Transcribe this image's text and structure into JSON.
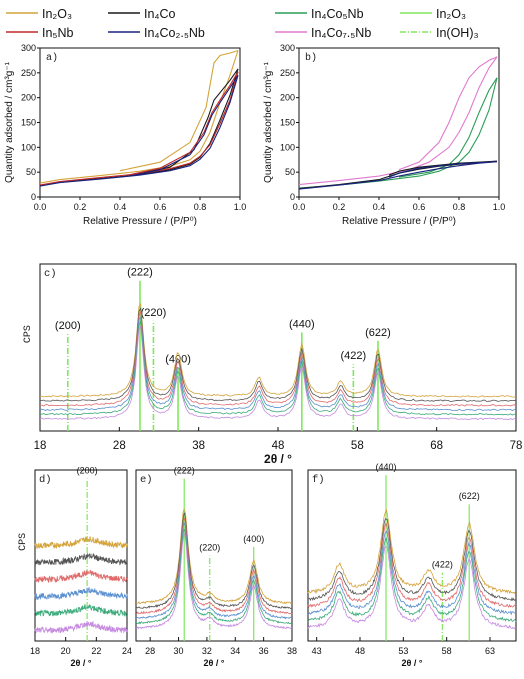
{
  "legend": [
    {
      "text": "In₂O₃",
      "color": "#d4a33a",
      "dash": ""
    },
    {
      "text": "In₄Co",
      "color": "#1a1a1a",
      "dash": ""
    },
    {
      "text": "In₄Co₅Nb",
      "color": "#2a9d55",
      "dash": ""
    },
    {
      "text": "In₂O₃",
      "color": "#7fe85a",
      "dash": ""
    },
    {
      "text": "In₅Nb",
      "color": "#c0282a",
      "dash": ""
    },
    {
      "text": "In₄Co₂.₅Nb",
      "color": "#1a237e",
      "dash": ""
    },
    {
      "text": "In₄Co₇.₅Nb",
      "color": "#e07ad0",
      "dash": ""
    },
    {
      "text": "In(OH)₃",
      "color": "#7fe85a",
      "dash": "6,2,1,2"
    }
  ],
  "colors": {
    "In2O3": "#d4a33a",
    "In4Co": "#1a1a1a",
    "In5Nb": "#c0282a",
    "In4Co2.5Nb": "#1a237e",
    "In4Co5Nb": "#2a9d55",
    "In4Co7.5Nb": "#e07ad0",
    "xrd": [
      "#d4a33a",
      "#555555",
      "#e06a6a",
      "#5a8fd0",
      "#3aaa7a",
      "#c58ae0"
    ],
    "ref": "#7fe85a"
  },
  "chart_data": [
    {
      "panel": "a)",
      "type": "line",
      "xlabel": "Relative Pressure / (P/P⁰)",
      "ylabel": "Quantity adsorbed / cm³g⁻¹",
      "xlim": [
        0.0,
        1.0
      ],
      "ylim": [
        0,
        300
      ],
      "xticks": [
        "0.0",
        "0.2",
        "0.4",
        "0.6",
        "0.8",
        "1.0"
      ],
      "yticks": [
        "0",
        "50",
        "100",
        "150",
        "200",
        "250",
        "300"
      ],
      "series": [
        {
          "key": "In2O3",
          "ads_x": [
            0.0,
            0.1,
            0.3,
            0.5,
            0.65,
            0.75,
            0.8,
            0.85,
            0.9,
            0.95,
            0.99
          ],
          "ads_y": [
            28,
            35,
            43,
            52,
            62,
            75,
            92,
            130,
            190,
            245,
            295
          ],
          "des_x": [
            0.99,
            0.95,
            0.9,
            0.87,
            0.83,
            0.75,
            0.6,
            0.4
          ],
          "des_y": [
            295,
            290,
            285,
            270,
            180,
            110,
            70,
            53
          ]
        },
        {
          "key": "In4Co",
          "ads_x": [
            0.0,
            0.1,
            0.3,
            0.5,
            0.65,
            0.75,
            0.8,
            0.85,
            0.9,
            0.95,
            0.99
          ],
          "ads_y": [
            23,
            30,
            37,
            45,
            55,
            66,
            80,
            108,
            155,
            205,
            258
          ],
          "des_x": [
            0.99,
            0.95,
            0.9,
            0.87,
            0.84,
            0.77,
            0.65,
            0.45
          ],
          "des_y": [
            258,
            235,
            210,
            195,
            160,
            95,
            60,
            43
          ]
        },
        {
          "key": "In5Nb",
          "ads_x": [
            0.0,
            0.1,
            0.3,
            0.5,
            0.65,
            0.75,
            0.8,
            0.85,
            0.9,
            0.95,
            0.99
          ],
          "ads_y": [
            24,
            31,
            39,
            47,
            57,
            68,
            82,
            105,
            148,
            195,
            252
          ],
          "des_x": [
            0.99,
            0.95,
            0.9,
            0.86,
            0.82,
            0.75,
            0.6,
            0.45
          ],
          "des_y": [
            252,
            225,
            195,
            170,
            130,
            90,
            58,
            45
          ]
        },
        {
          "key": "In4Co2.5Nb",
          "ads_x": [
            0.0,
            0.1,
            0.3,
            0.5,
            0.65,
            0.75,
            0.8,
            0.85,
            0.9,
            0.95,
            0.99
          ],
          "ads_y": [
            22,
            29,
            36,
            44,
            53,
            63,
            76,
            98,
            140,
            190,
            245
          ],
          "des_x": [
            0.99,
            0.95,
            0.9,
            0.86,
            0.82,
            0.75,
            0.6,
            0.45
          ],
          "des_y": [
            245,
            220,
            190,
            165,
            125,
            85,
            55,
            42
          ]
        }
      ]
    },
    {
      "panel": "b)",
      "type": "line",
      "xlabel": "Relative Pressure / (P/P⁰)",
      "ylabel": "Quantity adsorbed / cm³g⁻¹",
      "xlim": [
        0.0,
        1.0
      ],
      "ylim": [
        0,
        300
      ],
      "xticks": [
        "0.0",
        "0.2",
        "0.4",
        "0.6",
        "0.8",
        "1.0"
      ],
      "yticks": [
        "0",
        "50",
        "100",
        "150",
        "200",
        "250",
        "300"
      ],
      "series": [
        {
          "key": "In4Co5Nb",
          "ads_x": [
            0.0,
            0.2,
            0.4,
            0.6,
            0.7,
            0.8,
            0.85,
            0.9,
            0.95,
            0.99
          ],
          "ads_y": [
            18,
            24,
            32,
            42,
            52,
            70,
            90,
            125,
            175,
            240
          ],
          "des_x": [
            0.99,
            0.95,
            0.9,
            0.85,
            0.8,
            0.75,
            0.65,
            0.5
          ],
          "des_y": [
            240,
            215,
            170,
            120,
            85,
            65,
            50,
            40
          ]
        },
        {
          "key": "In4Co7.5Nb",
          "ads_x": [
            0.0,
            0.2,
            0.4,
            0.55,
            0.65,
            0.75,
            0.8,
            0.85,
            0.9,
            0.95,
            0.99
          ],
          "ads_y": [
            25,
            33,
            42,
            55,
            70,
            100,
            130,
            170,
            220,
            260,
            282
          ],
          "des_x": [
            0.99,
            0.95,
            0.9,
            0.85,
            0.8,
            0.75,
            0.7,
            0.6,
            0.5
          ],
          "des_y": [
            282,
            275,
            262,
            240,
            200,
            150,
            110,
            70,
            55
          ]
        },
        {
          "key": "In4Co",
          "ads_x": [
            0.0,
            0.2,
            0.4,
            0.5,
            0.6,
            0.7,
            0.8,
            0.9,
            0.99
          ],
          "ads_y": [
            17,
            25,
            35,
            48,
            56,
            62,
            66,
            69,
            72
          ],
          "des_x": [
            0.99,
            0.8,
            0.6,
            0.5,
            0.45
          ],
          "des_y": [
            72,
            68,
            60,
            52,
            44
          ]
        },
        {
          "key": "In4Co2.5Nb",
          "ads_x": [
            0.0,
            0.2,
            0.4,
            0.5,
            0.6,
            0.7,
            0.8,
            0.9,
            0.99
          ],
          "ads_y": [
            16,
            24,
            33,
            42,
            50,
            57,
            63,
            68,
            71
          ],
          "des_x": [
            0.99,
            0.8,
            0.6,
            0.5,
            0.45
          ],
          "des_y": [
            71,
            67,
            58,
            48,
            40
          ]
        }
      ]
    },
    {
      "panel": "c)",
      "type": "line",
      "xlabel": "2θ / °",
      "ylabel": "CPS",
      "xlim": [
        18,
        78
      ],
      "xticks": [
        18,
        28,
        38,
        48,
        58,
        68,
        78
      ],
      "peaks": [
        {
          "x": 30.6,
          "h": 1.0
        },
        {
          "x": 35.4,
          "h": 0.45
        },
        {
          "x": 45.6,
          "h": 0.2
        },
        {
          "x": 51.0,
          "h": 0.55
        },
        {
          "x": 55.9,
          "h": 0.15
        },
        {
          "x": 60.6,
          "h": 0.5
        }
      ],
      "references": [
        {
          "label": "(200)",
          "x": 21.5,
          "height": 0.58,
          "style": "dashdot"
        },
        {
          "label": "(222)",
          "x": 30.6,
          "height": 0.9,
          "style": "solid"
        },
        {
          "label": "(220)",
          "x": 32.3,
          "height": 0.66,
          "style": "dashdot"
        },
        {
          "label": "(400)",
          "x": 35.4,
          "height": 0.38,
          "style": "solid"
        },
        {
          "label": "(440)",
          "x": 51.0,
          "height": 0.59,
          "style": "solid"
        },
        {
          "label": "(422)",
          "x": 57.5,
          "height": 0.4,
          "style": "dashdot"
        },
        {
          "label": "(622)",
          "x": 60.6,
          "height": 0.54,
          "style": "solid"
        }
      ]
    },
    {
      "panel": "d)",
      "type": "line",
      "xlabel": "2θ / °",
      "ylabel": "CPS",
      "xlim": [
        18,
        24
      ],
      "xticks": [
        18,
        20,
        22,
        24
      ],
      "peaks": [
        {
          "x": 21.5,
          "h": 0.5
        }
      ],
      "references": [
        {
          "label": "(200)",
          "x": 21.4,
          "height": 0.95,
          "style": "dashdot"
        }
      ]
    },
    {
      "panel": "e)",
      "type": "line",
      "xlabel": "2θ / °",
      "xlim": [
        27,
        38
      ],
      "xticks": [
        28,
        30,
        32,
        34,
        36,
        38
      ],
      "peaks": [
        {
          "x": 30.4,
          "h": 1.0
        },
        {
          "x": 32.2,
          "h": 0.08
        },
        {
          "x": 35.3,
          "h": 0.45
        }
      ],
      "references": [
        {
          "label": "(222)",
          "x": 30.4,
          "height": 0.95,
          "style": "solid"
        },
        {
          "label": "(220)",
          "x": 32.2,
          "height": 0.5,
          "style": "dashdot"
        },
        {
          "label": "(400)",
          "x": 35.3,
          "height": 0.55,
          "style": "solid"
        }
      ]
    },
    {
      "panel": "f)",
      "type": "line",
      "xlabel": "2θ / °",
      "xlim": [
        42,
        66
      ],
      "xticks": [
        43,
        48,
        53,
        58,
        63
      ],
      "peaks": [
        {
          "x": 45.6,
          "h": 0.35
        },
        {
          "x": 51.0,
          "h": 1.0
        },
        {
          "x": 55.9,
          "h": 0.25
        },
        {
          "x": 60.6,
          "h": 0.85
        }
      ],
      "references": [
        {
          "label": "(440)",
          "x": 51.0,
          "height": 0.97,
          "style": "solid"
        },
        {
          "label": "(422)",
          "x": 57.5,
          "height": 0.4,
          "style": "dashdot"
        },
        {
          "label": "(622)",
          "x": 60.6,
          "height": 0.8,
          "style": "solid"
        }
      ]
    }
  ]
}
